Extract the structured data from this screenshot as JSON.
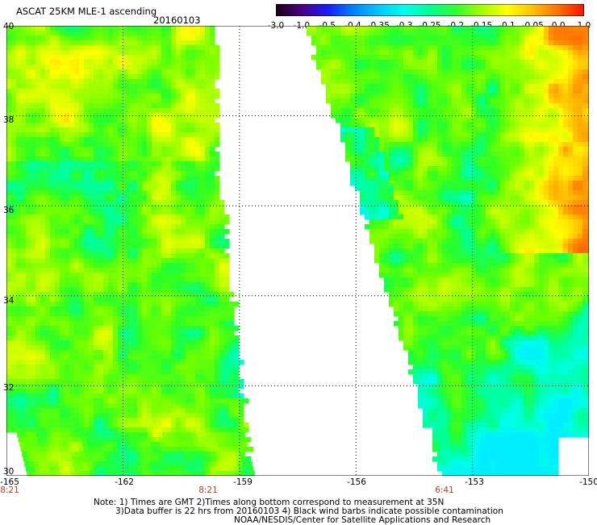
{
  "header": {
    "title": "ASCAT 25KM MLE-1 ascending",
    "date": "20160103"
  },
  "colorbar": {
    "ticks": [
      "-3.0",
      "-1.0",
      "-0.5",
      "-0.4",
      "-0.35",
      "-0.3",
      "-0.25",
      "-0.2",
      "-0.15",
      "-0.1",
      "-0.05",
      "0.0",
      "1.0"
    ],
    "colors": [
      "#1a0010",
      "#4b0082",
      "#1a1aff",
      "#0080ff",
      "#00c8ff",
      "#00ffee",
      "#00ff90",
      "#30ff30",
      "#a0ff00",
      "#ffff00",
      "#ffc000",
      "#ff7000",
      "#ff1000"
    ]
  },
  "map": {
    "lat_labels": [
      "40",
      "38",
      "36",
      "34",
      "32",
      "30"
    ],
    "lon_labels": [
      "-165",
      "-162",
      "-159",
      "-156",
      "-153",
      "-150"
    ],
    "time_labels": [
      "8:21",
      "8:21",
      "6:41"
    ],
    "lat_range": [
      30,
      40
    ],
    "lon_range": [
      -165,
      -150
    ]
  },
  "notes": {
    "line1": "Note: 1) Times are GMT 2)Times along bottom correspond to measurement at 35N",
    "line2": "3)Data buffer is 22 hrs from 20160103 4) Black wind barbs indicate possible contamination",
    "line3": "NOAA/NESDIS/Center for Satellite Applications and Research"
  }
}
